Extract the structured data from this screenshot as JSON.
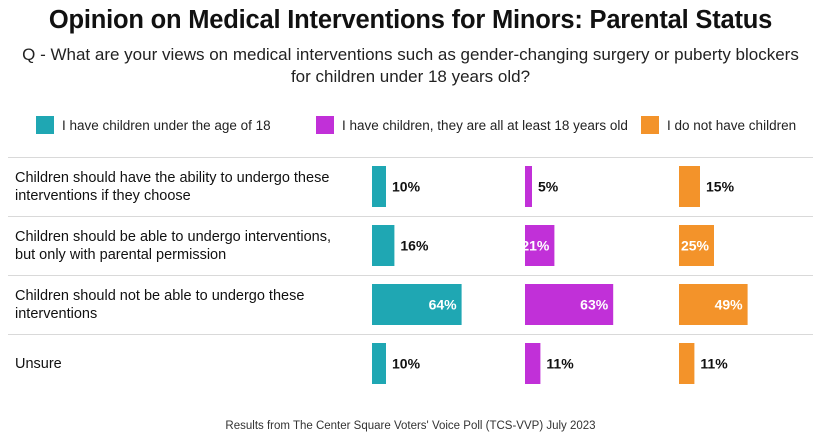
{
  "title": "Opinion on Medical Interventions for Minors: Parental Status",
  "subtitle_line1": "Q - What are your views on medical interventions such as gender-changing surgery or puberty blockers",
  "subtitle_line2": "for children under 18 years old?",
  "footer": "Results from The Center Square Voters' Voice Poll (TCS-VVP) July 2023",
  "chart_data": {
    "type": "bar",
    "orientation": "horizontal",
    "title": "Opinion on Medical Interventions for Minors: Parental Status",
    "categories": [
      "Children should have the ability to undergo these interventions if they choose",
      "Children should be able to undergo  interventions, but only with parental permission",
      "Children should not be able to undergo these interventions",
      "Unsure"
    ],
    "category_lines": [
      [
        "Children should have the ability to undergo these",
        "interventions if they choose"
      ],
      [
        "Children should be able to undergo  interventions,",
        "but only with parental permission"
      ],
      [
        "Children should not be able to undergo these",
        "interventions"
      ],
      [
        "Unsure"
      ]
    ],
    "series": [
      {
        "name": "I have children under the age of 18",
        "color": "#1fa7b3",
        "values": [
          10,
          16,
          64,
          10
        ]
      },
      {
        "name": "I have children, they are all at least 18 years old",
        "color": "#c130d8",
        "values": [
          5,
          21,
          63,
          11
        ]
      },
      {
        "name": "I do not have children",
        "color": "#f3932a",
        "values": [
          15,
          25,
          49,
          11
        ]
      }
    ],
    "value_suffix": "%",
    "legend_position": "top",
    "grid": false
  }
}
